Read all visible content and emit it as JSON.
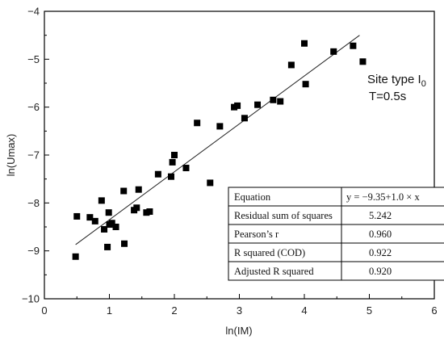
{
  "chart_data": {
    "type": "scatter",
    "xlabel": "ln(IM)",
    "ylabel": "ln(Umax)",
    "xlim": [
      0,
      6
    ],
    "ylim": [
      -10,
      -4
    ],
    "xticks": [
      "0",
      "1",
      "2",
      "3",
      "4",
      "5",
      "6"
    ],
    "yticks": [
      "-4",
      "-5",
      "-6",
      "-7",
      "-8",
      "-9",
      "-10"
    ],
    "grid": false,
    "annotation": {
      "line1": "Site type I",
      "line1_sub": "0",
      "line2": "T=0.5s"
    },
    "fit_line": {
      "intercept": -9.35,
      "slope": 1.0,
      "x_range": [
        0.48,
        4.85
      ]
    },
    "points": [
      {
        "x": 0.48,
        "y": -9.12
      },
      {
        "x": 0.5,
        "y": -8.28
      },
      {
        "x": 0.7,
        "y": -8.3
      },
      {
        "x": 0.78,
        "y": -8.38
      },
      {
        "x": 0.88,
        "y": -7.95
      },
      {
        "x": 0.92,
        "y": -8.55
      },
      {
        "x": 0.97,
        "y": -8.92
      },
      {
        "x": 0.99,
        "y": -8.2
      },
      {
        "x": 1.0,
        "y": -8.45
      },
      {
        "x": 1.04,
        "y": -8.42
      },
      {
        "x": 1.1,
        "y": -8.5
      },
      {
        "x": 1.22,
        "y": -7.75
      },
      {
        "x": 1.23,
        "y": -8.85
      },
      {
        "x": 1.38,
        "y": -8.15
      },
      {
        "x": 1.42,
        "y": -8.1
      },
      {
        "x": 1.45,
        "y": -7.72
      },
      {
        "x": 1.57,
        "y": -8.2
      },
      {
        "x": 1.62,
        "y": -8.18
      },
      {
        "x": 1.75,
        "y": -7.4
      },
      {
        "x": 1.95,
        "y": -7.45
      },
      {
        "x": 1.97,
        "y": -7.15
      },
      {
        "x": 2.0,
        "y": -7.0
      },
      {
        "x": 2.18,
        "y": -7.27
      },
      {
        "x": 2.35,
        "y": -6.33
      },
      {
        "x": 2.55,
        "y": -7.58
      },
      {
        "x": 2.7,
        "y": -6.4
      },
      {
        "x": 2.92,
        "y": -6.0
      },
      {
        "x": 2.97,
        "y": -5.97
      },
      {
        "x": 3.08,
        "y": -6.23
      },
      {
        "x": 3.28,
        "y": -5.95
      },
      {
        "x": 3.52,
        "y": -5.85
      },
      {
        "x": 3.63,
        "y": -5.88
      },
      {
        "x": 3.8,
        "y": -5.12
      },
      {
        "x": 4.0,
        "y": -4.67
      },
      {
        "x": 4.02,
        "y": -5.52
      },
      {
        "x": 4.45,
        "y": -4.84
      },
      {
        "x": 4.75,
        "y": -4.72
      },
      {
        "x": 4.9,
        "y": -5.05
      }
    ],
    "stats_table": {
      "header": [
        "Equation",
        "y = −9.35+1.0 × x"
      ],
      "rows": [
        [
          "Residual sum of squares",
          "5.242"
        ],
        [
          "Pearson’s r",
          "0.960"
        ],
        [
          "R squared (COD)",
          "0.922"
        ],
        [
          "Adjusted R squared",
          "0.920"
        ]
      ]
    }
  }
}
